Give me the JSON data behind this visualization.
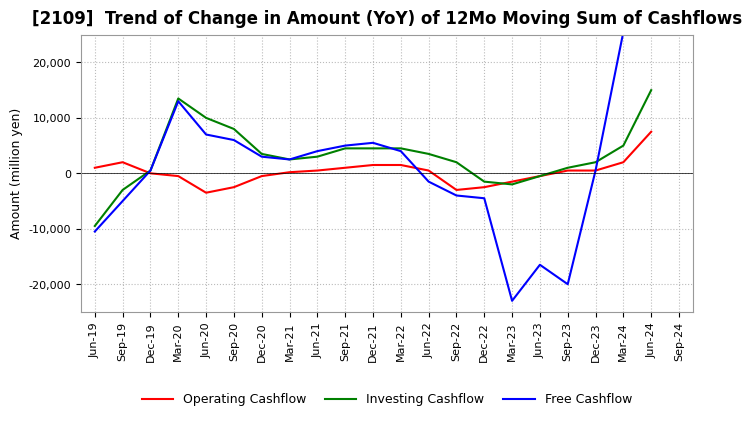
{
  "title": "[2109]  Trend of Change in Amount (YoY) of 12Mo Moving Sum of Cashflows",
  "ylabel": "Amount (million yen)",
  "x_labels": [
    "Jun-19",
    "Sep-19",
    "Dec-19",
    "Mar-20",
    "Jun-20",
    "Sep-20",
    "Dec-20",
    "Mar-21",
    "Jun-21",
    "Sep-21",
    "Dec-21",
    "Mar-22",
    "Jun-22",
    "Sep-22",
    "Dec-22",
    "Mar-23",
    "Jun-23",
    "Sep-23",
    "Dec-23",
    "Mar-24",
    "Jun-24",
    "Sep-24"
  ],
  "operating": [
    1000,
    2000,
    0,
    -500,
    -3500,
    -2500,
    -500,
    200,
    500,
    1000,
    1500,
    1500,
    500,
    -3000,
    -2500,
    -1500,
    -500,
    500,
    500,
    2000,
    7500,
    null
  ],
  "investing": [
    -9500,
    -3000,
    500,
    13500,
    10000,
    8000,
    3500,
    2500,
    3000,
    4500,
    4500,
    4500,
    3500,
    2000,
    -1500,
    -2000,
    -500,
    1000,
    2000,
    5000,
    15000,
    null
  ],
  "free": [
    -10500,
    -5000,
    500,
    13000,
    7000,
    6000,
    3000,
    2500,
    4000,
    5000,
    5500,
    4000,
    -1500,
    -4000,
    -4500,
    -23000,
    -16500,
    -20000,
    500,
    25500,
    25500,
    null
  ],
  "ylim": [
    -25000,
    25000
  ],
  "yticks": [
    -20000,
    -10000,
    0,
    10000,
    20000
  ],
  "operating_color": "#ff0000",
  "investing_color": "#008000",
  "free_color": "#0000ff",
  "grid_color": "#bbbbbb",
  "background_color": "#ffffff",
  "title_fontsize": 12,
  "axis_fontsize": 9,
  "legend_fontsize": 9,
  "tick_fontsize": 8
}
